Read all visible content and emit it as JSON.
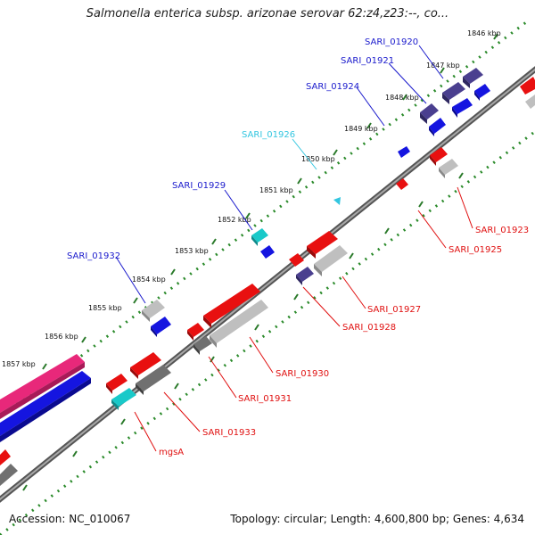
{
  "title": "Salmonella enterica subsp. arizonae serovar 62:z4,z23:--, co...",
  "footer": {
    "accession": "Accession: NC_010067",
    "topology": "Topology: circular; Length: 4,600,800 bp; Genes: 4,634"
  },
  "kbp_labels": [
    "1846 kbp",
    "1847 kbp",
    "1848 kbp",
    "1849 kbp",
    "1850 kbp",
    "1851 kbp",
    "1852 kbp",
    "1853 kbp",
    "1854 kbp",
    "1855 kbp",
    "1856 kbp",
    "1857 kbp"
  ],
  "gene_labels": [
    {
      "id": "sari-01920",
      "text": "SARI_01920",
      "color": "#1a1acc"
    },
    {
      "id": "sari-01921",
      "text": "SARI_01921",
      "color": "#1a1acc"
    },
    {
      "id": "sari-01924",
      "text": "SARI_01924",
      "color": "#1a1acc"
    },
    {
      "id": "sari-01926",
      "text": "SARI_01926",
      "color": "#33c6e0"
    },
    {
      "id": "sari-01929",
      "text": "SARI_01929",
      "color": "#1a1acc"
    },
    {
      "id": "sari-01932",
      "text": "SARI_01932",
      "color": "#1a1acc"
    },
    {
      "id": "sari-01923",
      "text": "SARI_01923",
      "color": "#e01010"
    },
    {
      "id": "sari-01925",
      "text": "SARI_01925",
      "color": "#e01010"
    },
    {
      "id": "sari-01927",
      "text": "SARI_01927",
      "color": "#e01010"
    },
    {
      "id": "sari-01928",
      "text": "SARI_01928",
      "color": "#e01010"
    },
    {
      "id": "sari-01930",
      "text": "SARI_01930",
      "color": "#e01010"
    },
    {
      "id": "sari-01931",
      "text": "SARI_01931",
      "color": "#e01010"
    },
    {
      "id": "sari-01933",
      "text": "SARI_01933",
      "color": "#e01010"
    },
    {
      "id": "mgsa",
      "text": "mgsA",
      "color": "#e01010"
    }
  ],
  "colors": {
    "backbone": "#8c8c8c",
    "ruler_dots": "#2a8a2a",
    "forward_gene": "#1515e0",
    "reverse_gene": "#e81010",
    "pseudo_gene": "#bfbfbf",
    "hypothetical_gene": "#4a3f8f",
    "cyan_gene": "#19c9c9",
    "pink_gene": "#e8287a",
    "dark_gene": "#707070"
  }
}
